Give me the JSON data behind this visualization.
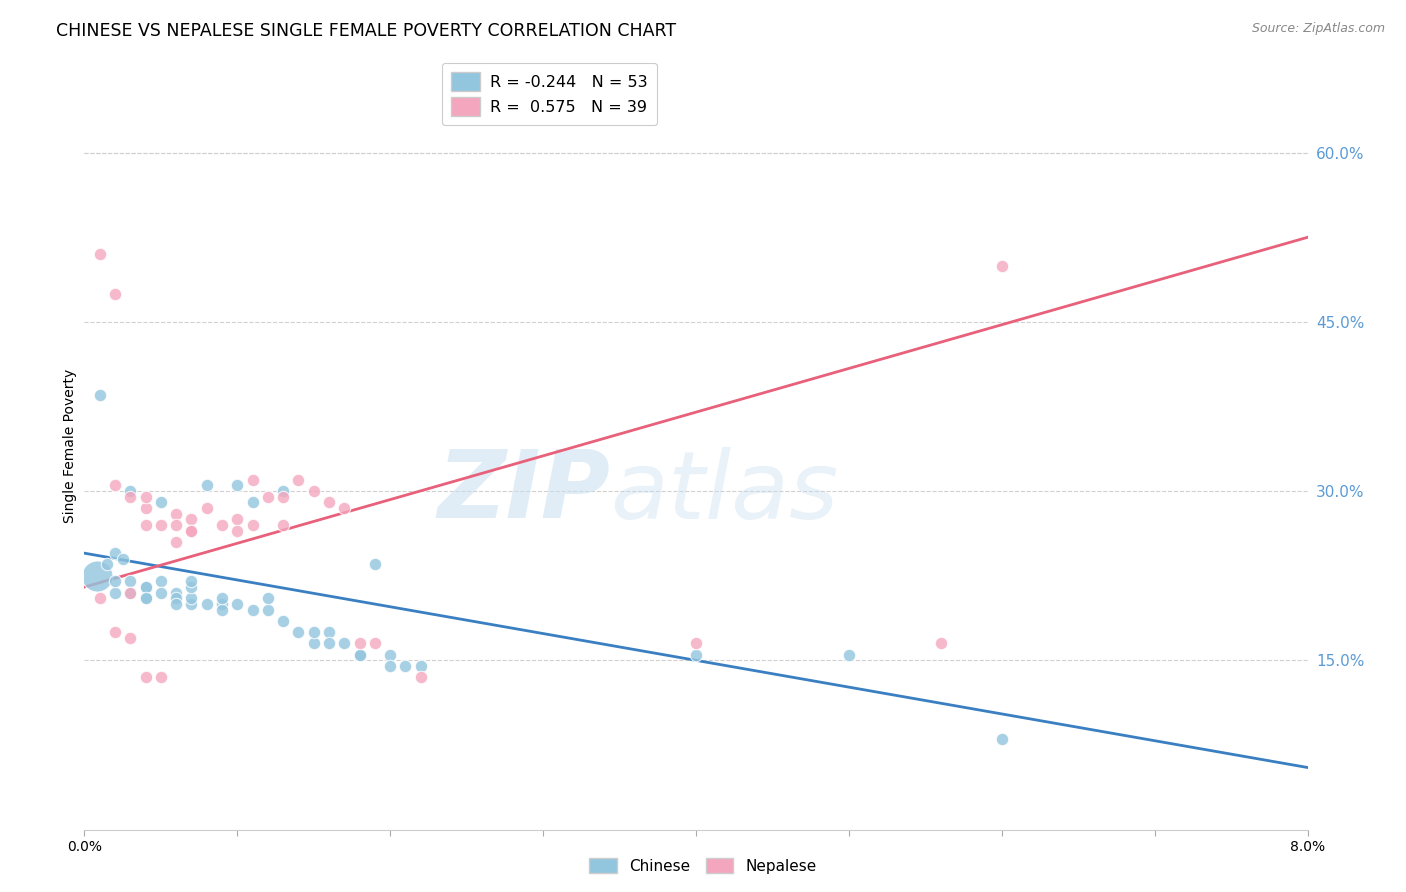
{
  "title": "CHINESE VS NEPALESE SINGLE FEMALE POVERTY CORRELATION CHART",
  "source": "Source: ZipAtlas.com",
  "ylabel": "Single Female Poverty",
  "right_yticks": [
    "60.0%",
    "45.0%",
    "30.0%",
    "15.0%"
  ],
  "right_ytick_vals": [
    0.6,
    0.45,
    0.3,
    0.15
  ],
  "xlim": [
    0.0,
    0.08
  ],
  "ylim": [
    0.0,
    0.68
  ],
  "legend_r_chinese": "-0.244",
  "legend_n_chinese": "53",
  "legend_r_nepalese": "0.575",
  "legend_n_nepalese": "39",
  "chinese_color": "#92c5de",
  "nepalese_color": "#f4a6be",
  "trendline_chinese_color": "#3a7fc1",
  "trendline_nepalese_color": "#e8607a",
  "chinese_trend": [
    0.245,
    0.055
  ],
  "nepalese_trend": [
    0.215,
    0.525
  ],
  "chinese_scatter": [
    [
      0.0008,
      0.225
    ],
    [
      0.001,
      0.385
    ],
    [
      0.0015,
      0.235
    ],
    [
      0.002,
      0.245
    ],
    [
      0.002,
      0.21
    ],
    [
      0.002,
      0.22
    ],
    [
      0.0025,
      0.24
    ],
    [
      0.003,
      0.22
    ],
    [
      0.003,
      0.21
    ],
    [
      0.003,
      0.3
    ],
    [
      0.004,
      0.215
    ],
    [
      0.004,
      0.205
    ],
    [
      0.004,
      0.215
    ],
    [
      0.004,
      0.205
    ],
    [
      0.005,
      0.22
    ],
    [
      0.005,
      0.21
    ],
    [
      0.005,
      0.29
    ],
    [
      0.006,
      0.21
    ],
    [
      0.006,
      0.205
    ],
    [
      0.006,
      0.2
    ],
    [
      0.007,
      0.2
    ],
    [
      0.007,
      0.205
    ],
    [
      0.007,
      0.215
    ],
    [
      0.007,
      0.22
    ],
    [
      0.008,
      0.305
    ],
    [
      0.008,
      0.2
    ],
    [
      0.009,
      0.2
    ],
    [
      0.009,
      0.195
    ],
    [
      0.009,
      0.205
    ],
    [
      0.01,
      0.305
    ],
    [
      0.01,
      0.2
    ],
    [
      0.011,
      0.29
    ],
    [
      0.011,
      0.195
    ],
    [
      0.012,
      0.195
    ],
    [
      0.012,
      0.205
    ],
    [
      0.013,
      0.3
    ],
    [
      0.013,
      0.185
    ],
    [
      0.014,
      0.175
    ],
    [
      0.015,
      0.165
    ],
    [
      0.015,
      0.175
    ],
    [
      0.016,
      0.175
    ],
    [
      0.016,
      0.165
    ],
    [
      0.017,
      0.165
    ],
    [
      0.018,
      0.155
    ],
    [
      0.018,
      0.155
    ],
    [
      0.019,
      0.235
    ],
    [
      0.02,
      0.155
    ],
    [
      0.02,
      0.145
    ],
    [
      0.021,
      0.145
    ],
    [
      0.022,
      0.145
    ],
    [
      0.04,
      0.155
    ],
    [
      0.05,
      0.155
    ],
    [
      0.06,
      0.08
    ]
  ],
  "nepalese_scatter": [
    [
      0.001,
      0.51
    ],
    [
      0.002,
      0.475
    ],
    [
      0.002,
      0.305
    ],
    [
      0.003,
      0.295
    ],
    [
      0.004,
      0.285
    ],
    [
      0.004,
      0.27
    ],
    [
      0.004,
      0.295
    ],
    [
      0.005,
      0.27
    ],
    [
      0.006,
      0.28
    ],
    [
      0.006,
      0.27
    ],
    [
      0.006,
      0.255
    ],
    [
      0.007,
      0.275
    ],
    [
      0.007,
      0.265
    ],
    [
      0.007,
      0.265
    ],
    [
      0.008,
      0.285
    ],
    [
      0.009,
      0.27
    ],
    [
      0.01,
      0.275
    ],
    [
      0.01,
      0.265
    ],
    [
      0.011,
      0.27
    ],
    [
      0.011,
      0.31
    ],
    [
      0.012,
      0.295
    ],
    [
      0.013,
      0.27
    ],
    [
      0.013,
      0.295
    ],
    [
      0.014,
      0.31
    ],
    [
      0.015,
      0.3
    ],
    [
      0.016,
      0.29
    ],
    [
      0.017,
      0.285
    ],
    [
      0.018,
      0.165
    ],
    [
      0.019,
      0.165
    ],
    [
      0.022,
      0.135
    ],
    [
      0.04,
      0.165
    ],
    [
      0.056,
      0.165
    ],
    [
      0.06,
      0.5
    ],
    [
      0.001,
      0.205
    ],
    [
      0.002,
      0.175
    ],
    [
      0.003,
      0.17
    ],
    [
      0.003,
      0.21
    ],
    [
      0.004,
      0.135
    ],
    [
      0.005,
      0.135
    ]
  ],
  "watermark_zip": "ZIP",
  "watermark_atlas": "atlas",
  "background_color": "#ffffff",
  "grid_color": "#d0d0d0",
  "tick_label_color": "#5b9bd5",
  "title_color": "#000000",
  "title_fontsize": 12.5,
  "source_fontsize": 9,
  "axis_label_fontsize": 10
}
